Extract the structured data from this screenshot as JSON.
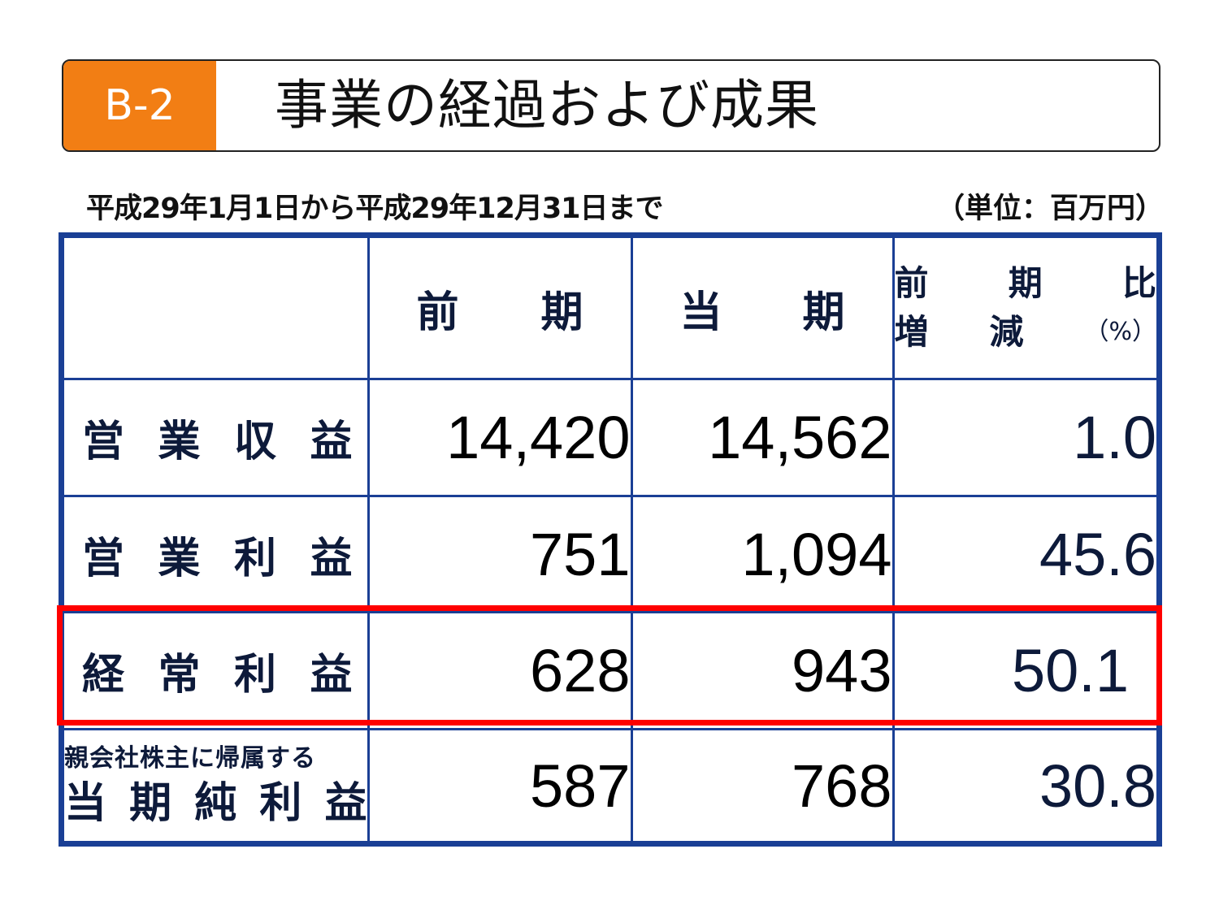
{
  "header": {
    "badge": "B-2",
    "title": "事業の経過および成果"
  },
  "period": "平成29年1月1日から平成29年12月31日まで",
  "unit": "（単位：百万円）",
  "table": {
    "headers": {
      "prev_a": "前",
      "prev_b": "期",
      "cur_a": "当",
      "cur_b": "期",
      "chg_1a": "前",
      "chg_1b": "期",
      "chg_1c": "比",
      "chg_2a": "増",
      "chg_2b": "減",
      "chg_2c": "（%）"
    },
    "rows": [
      {
        "label_chars": [
          "営",
          "業",
          "収",
          "益"
        ],
        "prev": "14,420",
        "cur": "14,562",
        "chg": "1.0"
      },
      {
        "label_chars": [
          "営",
          "業",
          "利",
          "益"
        ],
        "prev": "751",
        "cur": "1,094",
        "chg": "45.6"
      },
      {
        "label_chars": [
          "経",
          "常",
          "利",
          "益"
        ],
        "prev": "628",
        "cur": "943",
        "chg": "50.1"
      },
      {
        "label_small": "親会社株主に帰属する",
        "label_chars": [
          "当",
          "期",
          "純",
          "利",
          "益"
        ],
        "prev": "587",
        "cur": "768",
        "chg": "30.8"
      }
    ]
  },
  "colors": {
    "badge": "#f27e14",
    "table_border": "#1a3f95",
    "highlight": "#ff0000"
  }
}
